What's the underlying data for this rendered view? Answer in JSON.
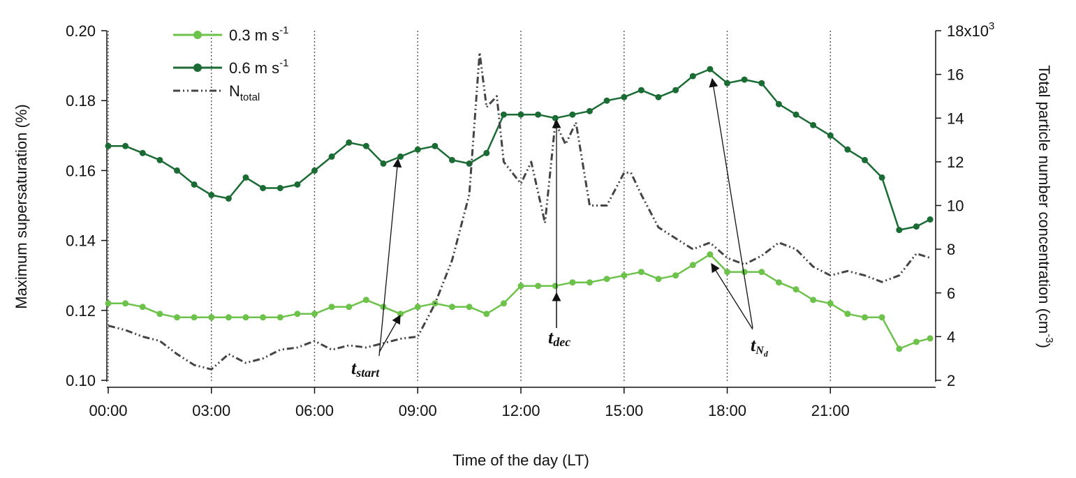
{
  "chart_data": {
    "type": "line",
    "xlabel": "Time of the day (LT)",
    "ylabel_left": "Maximum supersaturation (%)",
    "ylabel_right": "Total particle number concentration (cm",
    "ylabel_right_sup": "-3",
    "ylabel_right_close": ")",
    "x_range_hours": [
      0,
      24
    ],
    "x_ticks": [
      {
        "hour": 0,
        "label": "00:00"
      },
      {
        "hour": 3,
        "label": "03:00"
      },
      {
        "hour": 6,
        "label": "06:00"
      },
      {
        "hour": 9,
        "label": "09:00"
      },
      {
        "hour": 12,
        "label": "12:00"
      },
      {
        "hour": 15,
        "label": "15:00"
      },
      {
        "hour": 18,
        "label": "18:00"
      },
      {
        "hour": 21,
        "label": "21:00"
      }
    ],
    "left_axis": {
      "range": [
        0.1,
        0.2
      ],
      "ticks": [
        {
          "v": 0.1,
          "label": "0.10"
        },
        {
          "v": 0.12,
          "label": "0.12"
        },
        {
          "v": 0.14,
          "label": "0.14"
        },
        {
          "v": 0.16,
          "label": "0.16"
        },
        {
          "v": 0.18,
          "label": "0.18"
        },
        {
          "v": 0.2,
          "label": "0.20"
        }
      ]
    },
    "right_axis": {
      "range": [
        2000,
        18000
      ],
      "ticks": [
        {
          "v": 2000,
          "label": "2"
        },
        {
          "v": 4000,
          "label": "4"
        },
        {
          "v": 6000,
          "label": "6"
        },
        {
          "v": 8000,
          "label": "8"
        },
        {
          "v": 10000,
          "label": "10"
        },
        {
          "v": 12000,
          "label": "12"
        },
        {
          "v": 14000,
          "label": "14"
        },
        {
          "v": 16000,
          "label": "16"
        },
        {
          "v": 18000,
          "label": "18x10"
        }
      ],
      "top_tick_sup": "3"
    },
    "grid": "vertical dotted at each 3 h",
    "legend": {
      "position": "top-left",
      "entries": [
        {
          "label": "0.3 m s",
          "sup": "-1",
          "sub": ""
        },
        {
          "label": "0.6 m s",
          "sup": "-1",
          "sub": ""
        },
        {
          "label": "N",
          "sup": "",
          "sub": "total"
        }
      ]
    },
    "series": [
      {
        "name": "0.3 m s-1",
        "axis": "left",
        "color": "#6cc24a",
        "marker": "circle",
        "x": [
          0,
          0.5,
          1,
          1.5,
          2,
          2.5,
          3,
          3.5,
          4,
          4.5,
          5,
          5.5,
          6,
          6.5,
          7,
          7.5,
          8,
          8.5,
          9,
          9.5,
          10,
          10.5,
          11,
          11.5,
          12,
          12.5,
          13,
          13.5,
          14,
          14.5,
          15,
          15.5,
          16,
          16.5,
          17,
          17.5,
          18,
          18.5,
          19,
          19.5,
          20,
          20.5,
          21,
          21.5,
          22,
          22.5,
          23,
          23.5,
          23.9
        ],
        "values": [
          0.122,
          0.122,
          0.121,
          0.119,
          0.118,
          0.118,
          0.118,
          0.118,
          0.118,
          0.118,
          0.118,
          0.119,
          0.119,
          0.121,
          0.121,
          0.123,
          0.121,
          0.119,
          0.121,
          0.122,
          0.121,
          0.121,
          0.119,
          0.122,
          0.127,
          0.127,
          0.127,
          0.128,
          0.128,
          0.129,
          0.13,
          0.131,
          0.129,
          0.13,
          0.133,
          0.136,
          0.131,
          0.131,
          0.131,
          0.128,
          0.126,
          0.123,
          0.122,
          0.119,
          0.118,
          0.118,
          0.109,
          0.111,
          0.112
        ]
      },
      {
        "name": "0.6 m s-1",
        "axis": "left",
        "color": "#1a6b34",
        "marker": "circle",
        "x": [
          0,
          0.5,
          1,
          1.5,
          2,
          2.5,
          3,
          3.5,
          4,
          4.5,
          5,
          5.5,
          6,
          6.5,
          7,
          7.5,
          8,
          8.5,
          9,
          9.5,
          10,
          10.5,
          11,
          11.5,
          12,
          12.5,
          13,
          13.5,
          14,
          14.5,
          15,
          15.5,
          16,
          16.5,
          17,
          17.5,
          18,
          18.5,
          19,
          19.5,
          20,
          20.5,
          21,
          21.5,
          22,
          22.5,
          23,
          23.5,
          23.9
        ],
        "values": [
          0.167,
          0.167,
          0.165,
          0.163,
          0.16,
          0.156,
          0.153,
          0.152,
          0.158,
          0.155,
          0.155,
          0.156,
          0.16,
          0.164,
          0.168,
          0.167,
          0.162,
          0.164,
          0.166,
          0.167,
          0.163,
          0.162,
          0.165,
          0.176,
          0.176,
          0.176,
          0.175,
          0.176,
          0.177,
          0.18,
          0.181,
          0.183,
          0.181,
          0.183,
          0.187,
          0.189,
          0.185,
          0.186,
          0.185,
          0.179,
          0.176,
          0.173,
          0.17,
          0.166,
          0.163,
          0.158,
          0.143,
          0.144,
          0.146
        ]
      },
      {
        "name": "Ntotal",
        "axis": "right",
        "color": "#444444",
        "dash": "dash-dot-dot",
        "x": [
          0,
          0.5,
          1,
          1.5,
          2,
          2.5,
          3,
          3.5,
          4,
          4.5,
          5,
          5.5,
          6,
          6.5,
          7,
          7.5,
          8,
          8.5,
          9,
          9.5,
          10,
          10.5,
          10.8,
          11,
          11.3,
          11.5,
          12,
          12.3,
          12.7,
          13,
          13.3,
          13.6,
          14,
          14.5,
          15,
          15.2,
          15.5,
          16,
          16.5,
          17,
          17.5,
          18,
          18.5,
          19,
          19.5,
          20,
          20.5,
          21,
          21.5,
          22,
          22.5,
          23,
          23.5,
          23.9
        ],
        "values": [
          4500,
          4300,
          4000,
          3800,
          3200,
          2700,
          2500,
          3200,
          2800,
          3000,
          3400,
          3500,
          3800,
          3400,
          3600,
          3500,
          3700,
          3900,
          4000,
          5500,
          7500,
          10500,
          17000,
          14500,
          15000,
          12000,
          11000,
          12000,
          9200,
          13800,
          12800,
          13800,
          10000,
          10000,
          11500,
          11500,
          10500,
          9000,
          8500,
          8000,
          8300,
          7600,
          7300,
          7700,
          8300,
          8000,
          7200,
          6800,
          7000,
          6800,
          6500,
          6800,
          7800,
          7600
        ]
      }
    ],
    "annotations": [
      {
        "label": "t",
        "sub": "start"
      },
      {
        "label": "t",
        "sub": "dec"
      },
      {
        "label": "t",
        "sub": "N",
        "subsub": "d"
      }
    ]
  }
}
